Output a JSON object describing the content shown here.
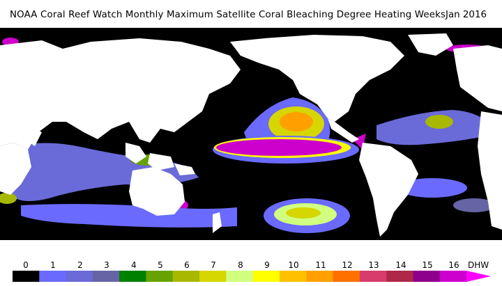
{
  "header": {
    "title": "NOAA Coral Reef Watch Monthly Maximum Satellite Coral Bleaching Degree Heating Weeks",
    "date": "Jan 2016"
  },
  "legend": {
    "ticks": [
      "0",
      "1",
      "2",
      "3",
      "4",
      "5",
      "6",
      "7",
      "8",
      "9",
      "10",
      "11",
      "12",
      "13",
      "14",
      "15",
      "16"
    ],
    "unit": "DHW",
    "colors": [
      "#000000",
      "#6a6aff",
      "#6a6ad8",
      "#6565a5",
      "#008000",
      "#66a300",
      "#a8b800",
      "#d6d600",
      "#d0ff80",
      "#ffff00",
      "#ffc000",
      "#ffa000",
      "#ff7000",
      "#d83c6c",
      "#b02848",
      "#8c008c",
      "#cc00cc"
    ],
    "arrow_color": "#ff00ff"
  },
  "colors": {
    "land": "#ffffff",
    "ocean_no_stress": "#000000",
    "el_nino_core": "#cc00cc"
  }
}
